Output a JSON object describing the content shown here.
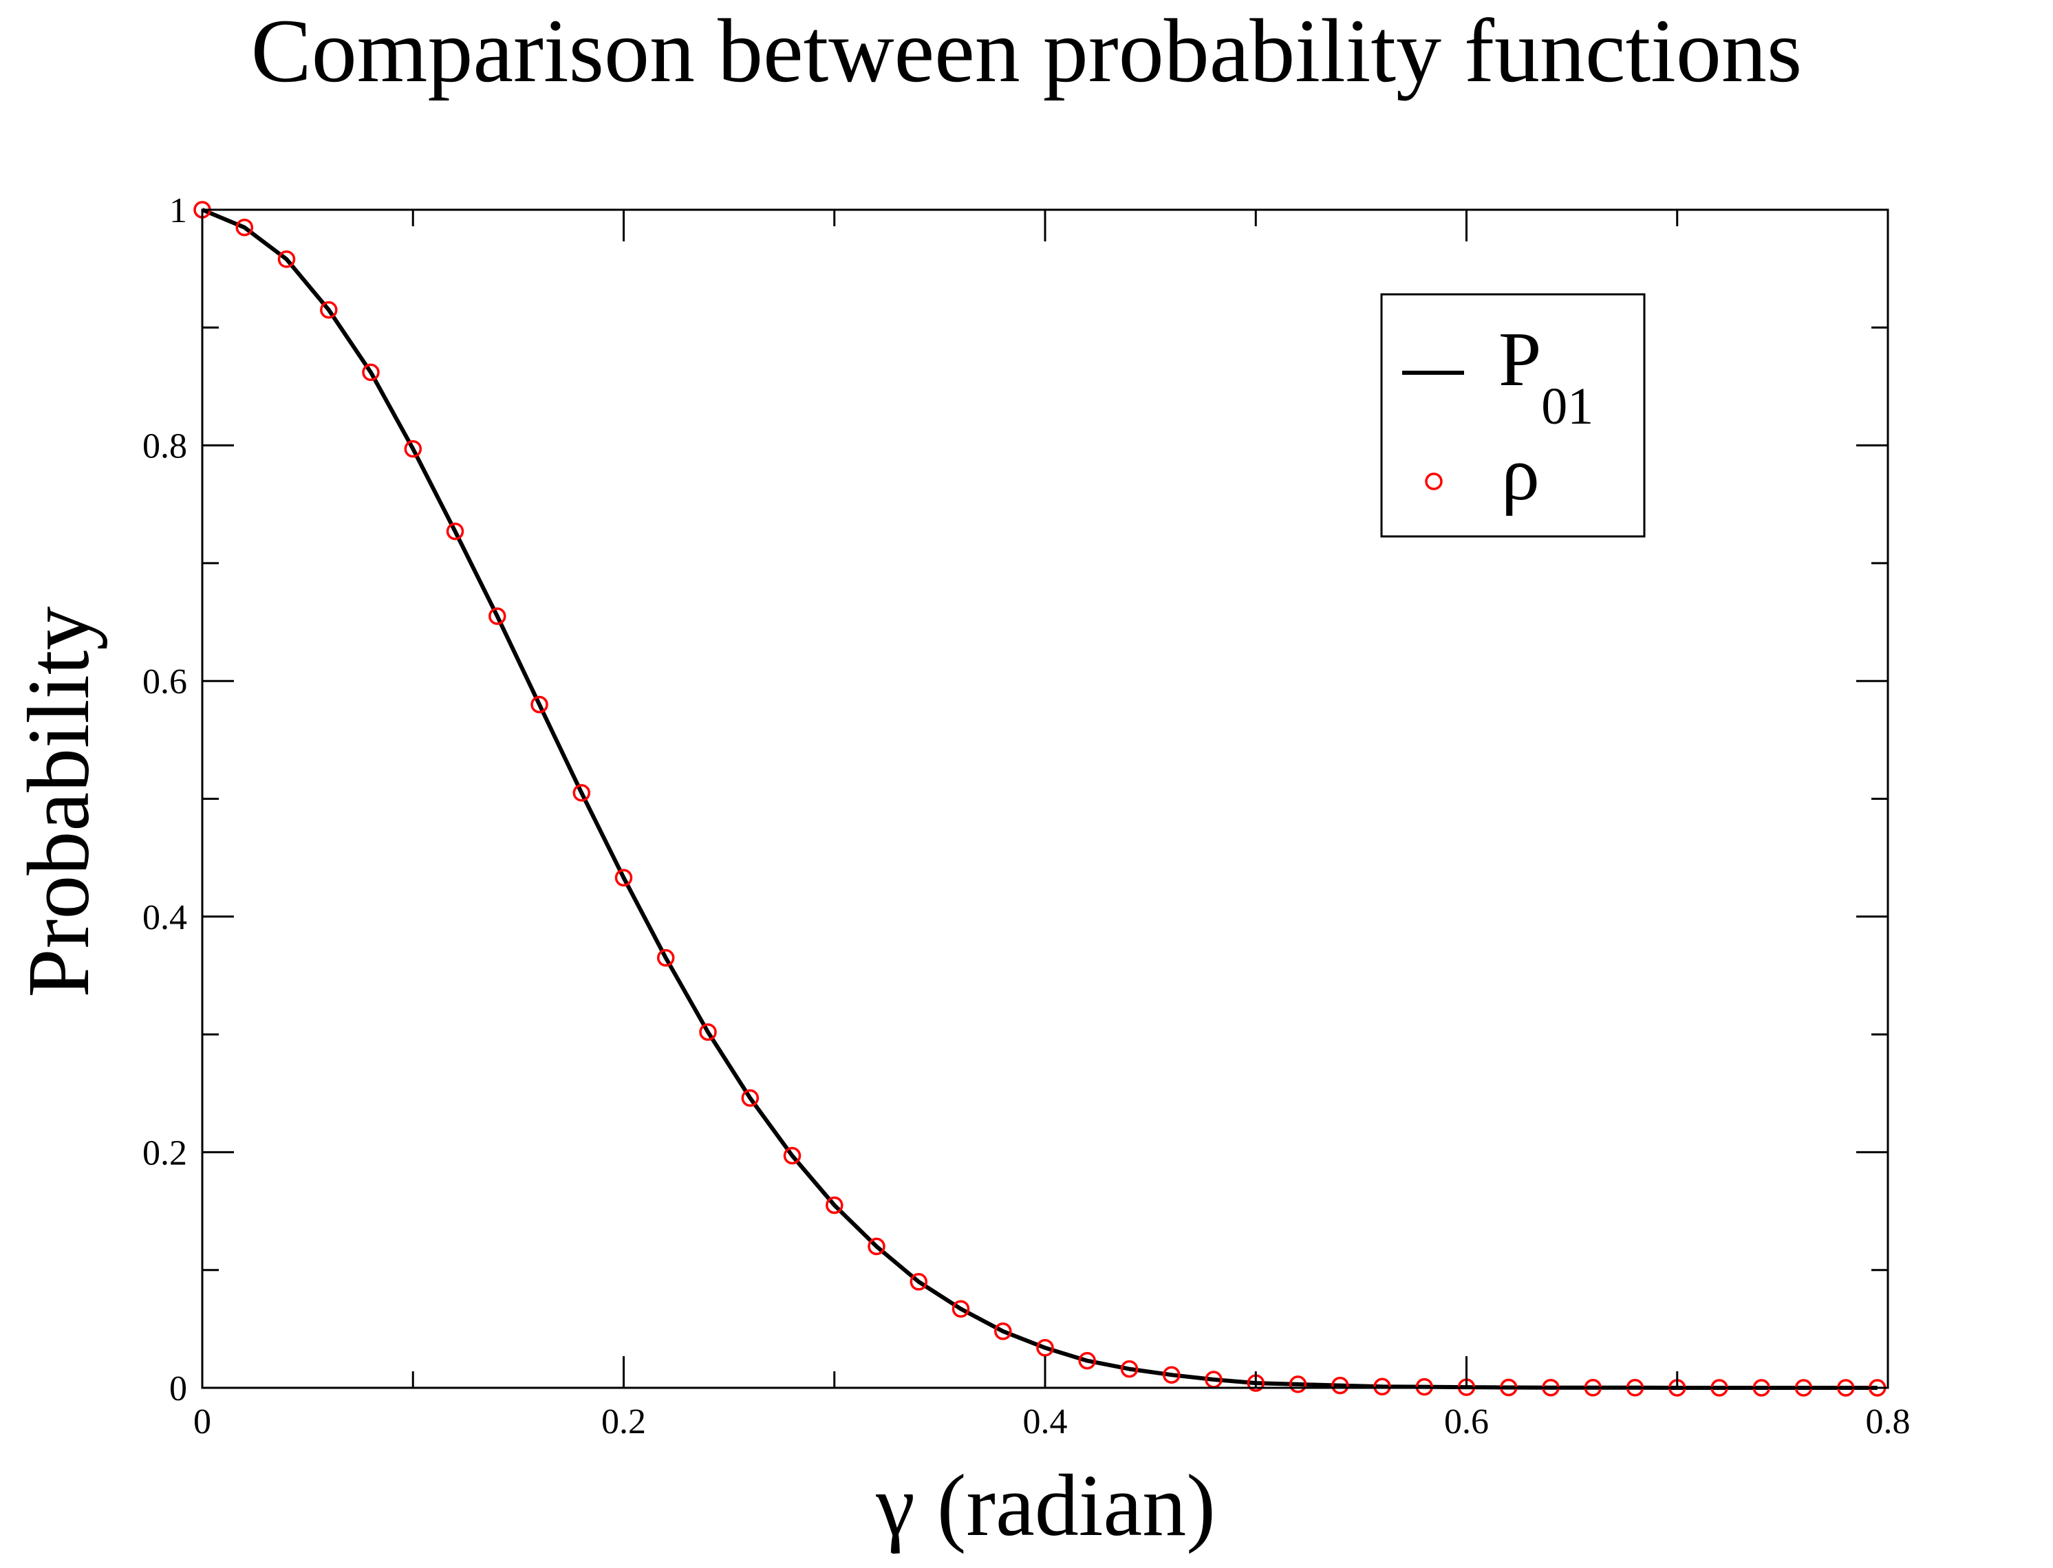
{
  "chart_data": {
    "type": "line",
    "title": "Comparison between probability functions",
    "xlabel": "γ (radian)",
    "ylabel": "Probability",
    "xlim": [
      0,
      0.8
    ],
    "ylim": [
      0,
      1
    ],
    "xticks": [
      "0",
      "0.2",
      "0.4",
      "0.6",
      "0.8"
    ],
    "yticks": [
      "0",
      "0.2",
      "0.4",
      "0.6",
      "0.8",
      "1"
    ],
    "xtick_values": [
      0,
      0.2,
      0.4,
      0.6,
      0.8
    ],
    "ytick_values": [
      0,
      0.2,
      0.4,
      0.6,
      0.8,
      1
    ],
    "grid": false,
    "legend_position": "top-right",
    "legend": [
      {
        "base": "P",
        "sub": "01",
        "marker": "line",
        "color": "#000000"
      },
      {
        "base": "ρ",
        "sub": "",
        "marker": "circle",
        "color": "#ff0000"
      }
    ],
    "x": [
      0,
      0.02,
      0.04,
      0.06,
      0.08,
      0.1,
      0.12,
      0.14,
      0.16,
      0.18,
      0.2,
      0.22,
      0.24,
      0.26,
      0.28,
      0.3,
      0.32,
      0.34,
      0.36,
      0.38,
      0.4,
      0.42,
      0.44,
      0.46,
      0.48,
      0.5,
      0.52,
      0.54,
      0.56,
      0.58,
      0.6,
      0.62,
      0.64,
      0.66,
      0.68,
      0.7,
      0.72,
      0.74,
      0.76,
      0.78,
      0.795
    ],
    "series": [
      {
        "name": "P01",
        "style": "line",
        "color": "#000000",
        "values": [
          1,
          0.985,
          0.958,
          0.915,
          0.862,
          0.797,
          0.727,
          0.655,
          0.58,
          0.505,
          0.433,
          0.365,
          0.302,
          0.246,
          0.197,
          0.155,
          0.12,
          0.09,
          0.067,
          0.048,
          0.034,
          0.023,
          0.016,
          0.011,
          0.007,
          0.004,
          0.003,
          0.002,
          0.001,
          0.0008,
          0.0005,
          0.0003,
          0.0002,
          0.0001,
          0.0001,
          0,
          0,
          0,
          0,
          0,
          0
        ]
      },
      {
        "name": "ρ",
        "style": "circle",
        "color": "#ff0000",
        "values": [
          1,
          0.985,
          0.958,
          0.915,
          0.862,
          0.797,
          0.727,
          0.655,
          0.58,
          0.505,
          0.433,
          0.365,
          0.302,
          0.246,
          0.197,
          0.155,
          0.12,
          0.09,
          0.067,
          0.048,
          0.034,
          0.023,
          0.016,
          0.011,
          0.007,
          0.004,
          0.003,
          0.002,
          0.001,
          0.0008,
          0.0005,
          0.0003,
          0.0002,
          0.0001,
          0.0001,
          0,
          0,
          0,
          0,
          0,
          0
        ]
      }
    ]
  }
}
